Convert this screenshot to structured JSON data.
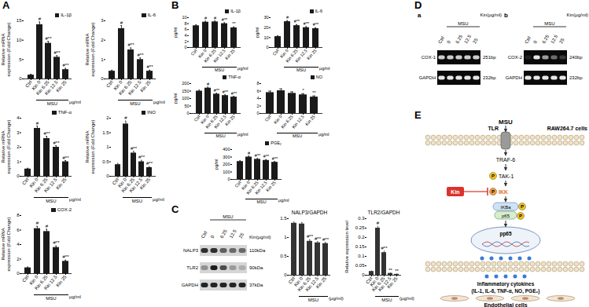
{
  "panels": [
    "A",
    "B",
    "C",
    "D",
    "E"
  ],
  "chart_data": [
    {
      "panel": "A",
      "type": "bar",
      "categories": [
        "Ctrl",
        "Kin 0",
        "Kin 6.25",
        "Kin 12.5",
        "Kin 25"
      ],
      "series": [
        {
          "name": "IL-1β",
          "color": "#1a1a1a",
          "values": [
            1,
            14,
            9.2,
            5.6,
            2.4
          ],
          "errors": [
            0.2,
            0.7,
            0.5,
            0.4,
            0.3
          ],
          "significance": [
            null,
            "#",
            "#**",
            "#**",
            "#**"
          ]
        }
      ],
      "ylabel": "Relative mRNA\nexpression (Fold Change)",
      "ylim": [
        0,
        15
      ],
      "yticks": [
        0,
        5,
        10,
        15
      ],
      "legend": "top-right",
      "group": {
        "label": "MSU",
        "categories": [
          "Kin 0",
          "Kin 6.25",
          "Kin 12.5",
          "Kin 25"
        ]
      },
      "unit": "μg/ml"
    },
    {
      "panel": "A",
      "type": "bar",
      "categories": [
        "Ctrl",
        "Kin 0",
        "Kin 6.25",
        "Kin 12.5",
        "Kin 25"
      ],
      "series": [
        {
          "name": "IL-6",
          "color": "#1a1a1a",
          "values": [
            0.4,
            2.6,
            1.5,
            1.0,
            0.4
          ],
          "errors": [
            0.05,
            0.15,
            0.1,
            0.08,
            0.05
          ],
          "significance": [
            null,
            "#",
            "#**",
            "#**",
            "#**"
          ]
        }
      ],
      "ylabel": "Relative mRNA\nexpression (Fold Change)",
      "ylim": [
        0,
        3
      ],
      "yticks": [
        0,
        1,
        2,
        3
      ],
      "legend": "top-right",
      "group": {
        "label": "MSU",
        "categories": [
          "Kin 0",
          "Kin 6.25",
          "Kin 12.5",
          "Kin 25"
        ]
      },
      "unit": "μg/ml"
    },
    {
      "panel": "A",
      "type": "bar",
      "categories": [
        "Ctrl",
        "Kin 0",
        "Kin 6.25",
        "Kin 12.5",
        "Kin 25"
      ],
      "series": [
        {
          "name": "TNF-α",
          "color": "#1a1a1a",
          "values": [
            0.5,
            3.3,
            2.6,
            2.0,
            1.0
          ],
          "errors": [
            0.05,
            0.15,
            0.15,
            0.1,
            0.08
          ],
          "significance": [
            null,
            "#",
            "#**",
            "#**",
            "#**"
          ]
        }
      ],
      "ylabel": "Relative mRNA\nexpression (Fold Change)",
      "ylim": [
        0,
        4
      ],
      "yticks": [
        0,
        1,
        2,
        3,
        4
      ],
      "legend": "top-right",
      "group": {
        "label": "MSU",
        "categories": [
          "Kin 0",
          "Kin 6.25",
          "Kin 12.5",
          "Kin 25"
        ]
      },
      "unit": "μg/ml"
    },
    {
      "panel": "A",
      "type": "bar",
      "categories": [
        "Ctrl",
        "Kin 0",
        "Kin 6.25",
        "Kin 12.5",
        "Kin 25"
      ],
      "series": [
        {
          "name": "INO",
          "color": "#1a1a1a",
          "values": [
            0.4,
            1.8,
            0.8,
            0.5,
            0.3
          ],
          "errors": [
            0.04,
            0.1,
            0.06,
            0.05,
            0.03
          ],
          "significance": [
            null,
            "#",
            "#**",
            "#**",
            "#**"
          ]
        }
      ],
      "ylabel": "Relative mRNA\nexpression (Fold Change)",
      "ylim": [
        0,
        2
      ],
      "yticks": [
        0,
        0.5,
        1,
        1.5,
        2
      ],
      "legend": "top-right",
      "group": {
        "label": "MSU",
        "categories": [
          "Kin 0",
          "Kin 6.25",
          "Kin 12.5",
          "Kin 25"
        ]
      },
      "unit": "μg/ml"
    },
    {
      "panel": "A",
      "type": "bar",
      "categories": [
        "Ctrl",
        "Kin 0",
        "Kin 6.25",
        "Kin 12.5",
        "Kin 25"
      ],
      "series": [
        {
          "name": "COX-2",
          "color": "#1a1a1a",
          "values": [
            0.8,
            6.2,
            5.8,
            3.6,
            1.7
          ],
          "errors": [
            0.1,
            0.3,
            0.3,
            0.2,
            0.15
          ],
          "significance": [
            null,
            "#",
            "#",
            "#**",
            "#**"
          ]
        }
      ],
      "ylabel": "Relative mRNA\nexpression (Fold Change)",
      "ylim": [
        0,
        8
      ],
      "yticks": [
        0,
        2,
        4,
        6,
        8
      ],
      "legend": "top-right",
      "group": {
        "label": "MSU",
        "categories": [
          "Kin 0",
          "Kin 6.25",
          "Kin 12.5",
          "Kin 25"
        ]
      },
      "unit": "μg/ml"
    },
    {
      "panel": "B",
      "type": "bar",
      "categories": [
        "Ctrl",
        "Kin 0",
        "Kin 6.25",
        "Kin 12.5",
        "Kin 25"
      ],
      "series": [
        {
          "name": "IL-1β",
          "color": "#1a1a1a",
          "values": [
            7.3,
            8.5,
            8.6,
            8.0,
            6.6
          ],
          "errors": [
            0.3,
            0.3,
            0.3,
            0.3,
            0.3
          ],
          "significance": [
            null,
            "#",
            "#",
            "#**",
            "**"
          ]
        }
      ],
      "ylabel": "pg/ml",
      "ylim": [
        0,
        10
      ],
      "yticks": [
        0,
        2,
        4,
        6,
        8,
        10
      ],
      "legend": "top-right",
      "group": {
        "label": "MSU",
        "categories": [
          "Kin 0",
          "Kin 6.25",
          "Kin 12.5",
          "Kin 25"
        ]
      },
      "unit": "μg/ml"
    },
    {
      "panel": "B",
      "type": "bar",
      "categories": [
        "Ctrl",
        "Kin 0",
        "Kin 6.25",
        "Kin 12.5",
        "Kin 25"
      ],
      "series": [
        {
          "name": "IL-6",
          "color": "#1a1a1a",
          "values": [
            11,
            26,
            22,
            20,
            19
          ],
          "errors": [
            0.8,
            1,
            1,
            1,
            0.8
          ],
          "significance": [
            null,
            "#",
            "#**",
            "#**",
            "#**"
          ]
        }
      ],
      "ylabel": "pg/ml",
      "ylim": [
        0,
        30
      ],
      "yticks": [
        0,
        10,
        20,
        30
      ],
      "legend": "top-right",
      "group": {
        "label": "MSU",
        "categories": [
          "Kin 0",
          "Kin 6.25",
          "Kin 12.5",
          "Kin 25"
        ]
      },
      "unit": "μg/ml"
    },
    {
      "panel": "B",
      "type": "bar",
      "categories": [
        "Ctrl",
        "Kin 0",
        "Kin 6.25",
        "Kin 12.5",
        "Kin 25"
      ],
      "series": [
        {
          "name": "TNF-α",
          "color": "#1a1a1a",
          "values": [
            150,
            170,
            130,
            120,
            110
          ],
          "errors": [
            6,
            6,
            5,
            5,
            5
          ],
          "significance": [
            null,
            "#",
            "#**",
            "#**",
            "#**"
          ]
        }
      ],
      "ylabel": "pg/ml",
      "ylim": [
        0,
        200
      ],
      "yticks": [
        0,
        50,
        100,
        150,
        200
      ],
      "legend": "top-right",
      "group": {
        "label": "MSU",
        "categories": [
          "Kin 0",
          "Kin 6.25",
          "Kin 12.5",
          "Kin 25"
        ]
      },
      "unit": "μg/ml"
    },
    {
      "panel": "B",
      "type": "bar",
      "categories": [
        "Ctrl",
        "Kin 0",
        "Kin 6.25",
        "Kin 12.5",
        "Kin 25"
      ],
      "series": [
        {
          "name": "NO",
          "color": "#1a1a1a",
          "values": [
            5.6,
            6.1,
            5.4,
            5.0,
            4.4
          ],
          "errors": [
            0.4,
            0.5,
            0.4,
            0.3,
            0.3
          ],
          "significance": [
            null,
            null,
            null,
            "*",
            "**"
          ]
        }
      ],
      "ylim": [
        0,
        8
      ],
      "yticks": [
        0,
        2,
        4,
        6,
        8
      ],
      "legend": "top-right",
      "group": {
        "label": "MSU",
        "categories": [
          "Kin 0",
          "Kin 6.25",
          "Kin 12.5",
          "Kin 25"
        ]
      },
      "unit": "μg/ml"
    },
    {
      "panel": "B",
      "type": "bar",
      "categories": [
        "Ctrl",
        "Kin 0",
        "Kin 6.25",
        "Kin 12.5",
        "Kin 25"
      ],
      "series": [
        {
          "name": "PGE₂",
          "color": "#1a1a1a",
          "values": [
            240,
            300,
            270,
            255,
            230
          ],
          "errors": [
            10,
            12,
            10,
            10,
            10
          ],
          "significance": [
            null,
            "#",
            "#**",
            "#**",
            "#**"
          ]
        }
      ],
      "ylabel": "pg/ml",
      "ylim": [
        0,
        400
      ],
      "yticks": [
        0,
        100,
        200,
        300,
        400
      ],
      "legend": "top-right",
      "group": {
        "label": "MSU",
        "categories": [
          "Kin 0",
          "Kin 6.25",
          "Kin 12.5",
          "Kin 25"
        ]
      },
      "unit": "μg/ml"
    },
    {
      "panel": "C",
      "type": "bar",
      "title": "NALP3/GAPDH",
      "categories": [
        "Ctrl",
        "Kin 0",
        "Kin 6.25",
        "Kin 12.5",
        "Kin 25"
      ],
      "color": "#333333",
      "values": [
        1.38,
        1.36,
        0.9,
        0.86,
        0.84
      ],
      "errors": [
        0.03,
        0.04,
        0.04,
        0.03,
        0.03
      ],
      "significance": [
        null,
        null,
        "#**",
        "#**",
        "#**"
      ],
      "ylim": [
        0,
        1.5
      ],
      "yticks": [
        0,
        0.5,
        1,
        1.5
      ],
      "group": {
        "label": "MSU",
        "categories": [
          "Kin 0",
          "Kin 6.25",
          "Kin 12.5",
          "Kin 25"
        ]
      },
      "unit": "(μg/ml)"
    },
    {
      "panel": "C",
      "type": "bar",
      "title": "TLR2/GAPDH",
      "categories": [
        "Ctrl",
        "Kin 0",
        "Kin 6.25",
        "Kin 12.5",
        "Kin 25"
      ],
      "color": "#333333",
      "values": [
        0.02,
        0.25,
        0.12,
        0.01,
        0.005
      ],
      "errors": [
        0.003,
        0.01,
        0.008,
        0.002,
        0.001
      ],
      "significance": [
        null,
        "#",
        "#**",
        "**",
        "**"
      ],
      "ylabel": "Relative expression level",
      "ylim": [
        0,
        0.3
      ],
      "yticks": [
        0,
        0.05,
        0.1,
        0.15,
        0.2,
        0.25,
        0.3
      ],
      "group": {
        "label": "MSU",
        "categories": [
          "Kin 0",
          "Kin 6.25",
          "Kin 12.5",
          "Kin 25"
        ]
      },
      "unit": "(μg/ml)"
    }
  ],
  "blots": {
    "panel": "C",
    "header": "Kin(μg/ml)",
    "lanes": [
      "Ctrl",
      "0",
      "6.25",
      "12.5",
      "25"
    ],
    "group": {
      "label": "MSU",
      "lanes": [
        "0",
        "6.25",
        "12.5",
        "25"
      ]
    },
    "rows": [
      {
        "name": "NALP3",
        "size": "110kDa",
        "intensity": [
          0.85,
          0.85,
          0.6,
          0.55,
          0.55
        ]
      },
      {
        "name": "TLR2",
        "size": "90kDa",
        "intensity": [
          0.35,
          0.95,
          0.7,
          0.3,
          0.2
        ]
      },
      {
        "name": "GAPDH",
        "size": "37kDa",
        "intensity": [
          0.9,
          0.9,
          0.9,
          0.9,
          0.9
        ]
      }
    ]
  },
  "gels": [
    {
      "panel": "D",
      "label": "a",
      "header": "Kin(μg/ml)",
      "lanes": [
        "Ctrl",
        "0",
        "6.25",
        "12.5",
        "25"
      ],
      "group": {
        "label": "MSU",
        "lanes": [
          "0",
          "6.25",
          "12.5",
          "25"
        ]
      },
      "rows": [
        {
          "name": "COX-1",
          "size": "251bp",
          "intensity": [
            0.8,
            0.8,
            0.8,
            0.8,
            0.8
          ]
        },
        {
          "name": "GAPDH",
          "size": "232bp",
          "intensity": [
            0.9,
            0.9,
            0.9,
            0.9,
            0.9
          ]
        }
      ]
    },
    {
      "panel": "D",
      "label": "b",
      "header": "Kin(μg/ml)",
      "lanes": [
        "Ctrl",
        "0",
        "6.25",
        "12.5",
        "25"
      ],
      "group": {
        "label": "MSU",
        "lanes": [
          "0",
          "6.25",
          "12.5",
          "25"
        ]
      },
      "rows": [
        {
          "name": "COX-2",
          "size": "240bp",
          "intensity": [
            0.1,
            0.9,
            0.6,
            0.4,
            0.2
          ]
        },
        {
          "name": "GAPDH",
          "size": "232bp",
          "intensity": [
            0.9,
            0.9,
            0.9,
            0.9,
            0.9
          ]
        }
      ]
    }
  ],
  "pathway": {
    "panel": "E",
    "stimulus": "MSU",
    "receptor": "TLR",
    "cell": "RAW264.7 cells",
    "adaptor": "TRAF-6",
    "kinase": "TAK-1",
    "target_kinase": "IKK",
    "inhibitor": "Kin",
    "inhibitor_protein": "IKBa",
    "subunit": "p65",
    "nuclear": "pp65",
    "phospho": "P",
    "output": [
      "Inflammatory cytokines",
      "(IL-1, IL-6, TNF-α, NO, PGE₂)"
    ],
    "recipient": "Endothelial cells"
  }
}
